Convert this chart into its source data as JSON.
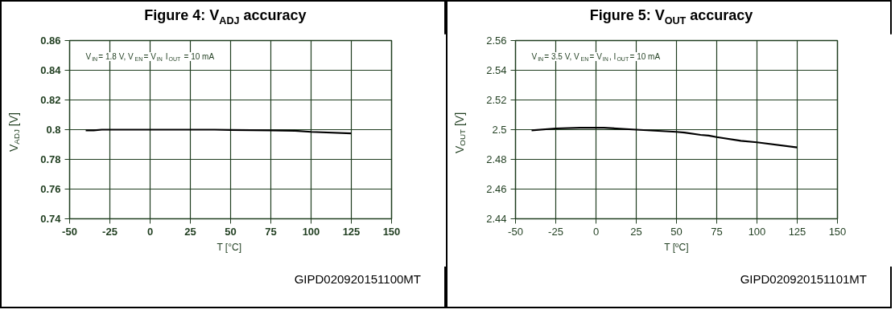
{
  "chart_data": [
    {
      "type": "line",
      "title": "Figure 4: V$_{ADJ}$ accuracy",
      "xlabel": "T  [°C]",
      "ylabel": "V$_{ADJ}$ [V]",
      "x": [
        -40,
        -35,
        -30,
        0,
        40,
        50,
        75,
        90,
        100,
        125
      ],
      "series": [
        {
          "color": "#000000",
          "values": [
            0.7995,
            0.7995,
            0.8,
            0.8,
            0.8,
            0.7998,
            0.7995,
            0.7993,
            0.7985,
            0.7975
          ]
        }
      ],
      "xlim": [
        -50,
        150
      ],
      "xticks": [
        -50,
        -25,
        0,
        25,
        50,
        75,
        100,
        125,
        150
      ],
      "ylim": [
        0.74,
        0.86
      ],
      "yticks": [
        0.74,
        0.76,
        0.78,
        0.8,
        0.82,
        0.84,
        0.86
      ],
      "grid": true,
      "marker": "none",
      "line_style": "solid",
      "annotations": [
        "V$_{IN}$= 1.8 V, V$_{EN}$= V$_{IN}$ I$_{OUT}$ = 10 mA",
        "GIPD020920151100MT"
      ]
    },
    {
      "type": "line",
      "title": "Figure 5: V$_{OUT}$ accuracy",
      "xlabel": "T [ºC]",
      "ylabel": "V$_{OUT}$ [V]",
      "x": [
        -40,
        -25,
        -10,
        5,
        25,
        50,
        55,
        65,
        70,
        75,
        90,
        100,
        125
      ],
      "series": [
        {
          "color": "#000000",
          "values": [
            2.4995,
            2.5008,
            2.5013,
            2.5013,
            2.5,
            2.4985,
            2.498,
            2.4965,
            2.496,
            2.495,
            2.4925,
            2.4915,
            2.488
          ]
        }
      ],
      "xlim": [
        -50,
        150
      ],
      "xticks": [
        -50,
        -25,
        0,
        25,
        50,
        75,
        100,
        125,
        150
      ],
      "ylim": [
        2.44,
        2.56
      ],
      "yticks": [
        2.44,
        2.46,
        2.48,
        2.5,
        2.52,
        2.54,
        2.56
      ],
      "grid": true,
      "marker": "none",
      "line_style": "solid",
      "annotations": [
        "V$_{IN}$= 3.5 V, V$_{EN}$= V$_{IN}$, I$_{OUT}$= 10 mA",
        "GIPD020920151101MT"
      ]
    }
  ]
}
